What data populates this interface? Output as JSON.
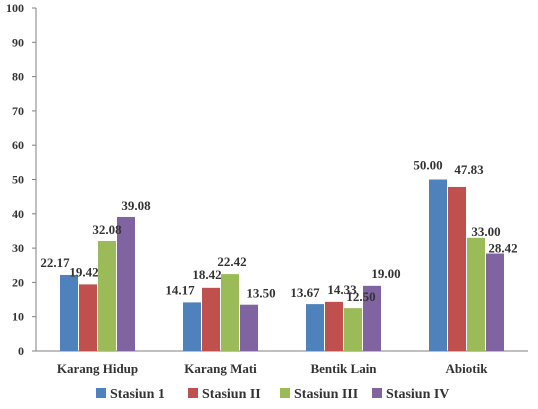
{
  "chart_data": {
    "type": "bar",
    "categories": [
      "Karang Hidup",
      "Karang Mati",
      "Bentik Lain",
      "Abiotik"
    ],
    "series": [
      {
        "name": "Stasiun 1",
        "values": [
          22.17,
          14.17,
          13.67,
          50.0
        ],
        "labels": [
          "22.17",
          "14.17",
          "13.67",
          "50.00"
        ],
        "color": "#4f81bd"
      },
      {
        "name": "Stasiun II",
        "values": [
          19.42,
          18.42,
          14.33,
          47.83
        ],
        "labels": [
          "19.42",
          "18.42",
          "14.33",
          "47.83"
        ],
        "color": "#c0504d"
      },
      {
        "name": "Stasiun III",
        "values": [
          32.08,
          22.42,
          12.5,
          33.0
        ],
        "labels": [
          "32.08",
          "22.42",
          "12.50",
          "33.00"
        ],
        "color": "#9bbb59"
      },
      {
        "name": "Stasiun IV",
        "values": [
          39.08,
          13.5,
          19.0,
          28.42
        ],
        "labels": [
          "39.08",
          "13.50",
          "19.00",
          "28.42"
        ],
        "color": "#8064a2"
      }
    ],
    "ylim": [
      0,
      100
    ],
    "yticks": [
      "0",
      "10",
      "20",
      "30",
      "40",
      "50",
      "60",
      "70",
      "80",
      "90",
      "100"
    ],
    "grid": false,
    "legend_position": "bottom",
    "title": "",
    "xlabel": "",
    "ylabel": ""
  }
}
